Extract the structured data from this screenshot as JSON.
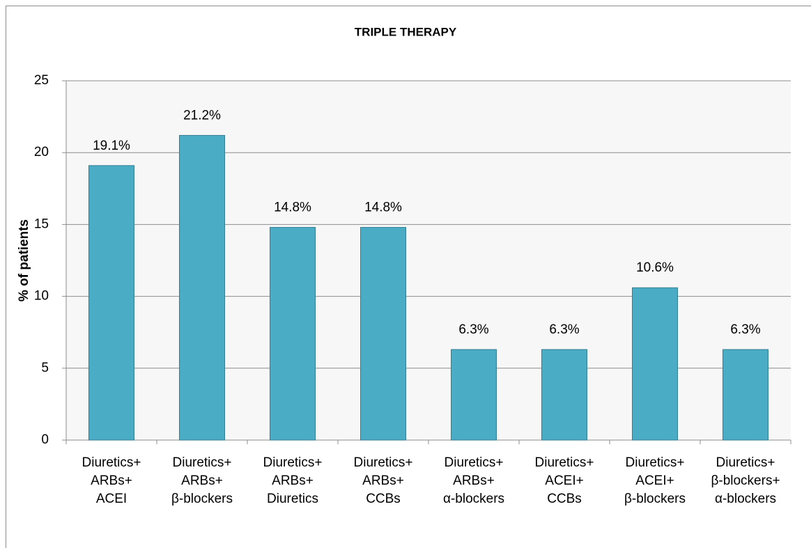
{
  "chart_data": {
    "type": "bar",
    "title": "TRIPLE THERAPY",
    "y_label": "% of patients",
    "categories": [
      [
        "Diuretics+",
        "ARBs+",
        "ACEI"
      ],
      [
        "Diuretics+",
        "ARBs+",
        "β-blockers"
      ],
      [
        "Diuretics+",
        "ARBs+",
        "Diuretics"
      ],
      [
        "Diuretics+",
        "ARBs+",
        "CCBs"
      ],
      [
        "Diuretics+",
        "ARBs+",
        "α-blockers"
      ],
      [
        "Diuretics+",
        "ACEI+",
        "CCBs"
      ],
      [
        "Diuretics+",
        "ACEI+",
        "β-blockers"
      ],
      [
        "Diuretics+",
        "β-blockers+",
        "α-blockers"
      ]
    ],
    "values": [
      19.1,
      21.2,
      14.8,
      14.8,
      6.3,
      6.3,
      10.6,
      6.3
    ],
    "value_labels": [
      "19.1%",
      "21.2%",
      "14.8%",
      "14.8%",
      "6.3%",
      "6.3%",
      "10.6%",
      "6.3%"
    ],
    "color": "#4bacc6",
    "ylim": [
      0,
      25
    ],
    "yticks": [
      0,
      5,
      10,
      15,
      20,
      25
    ],
    "grid": true
  }
}
